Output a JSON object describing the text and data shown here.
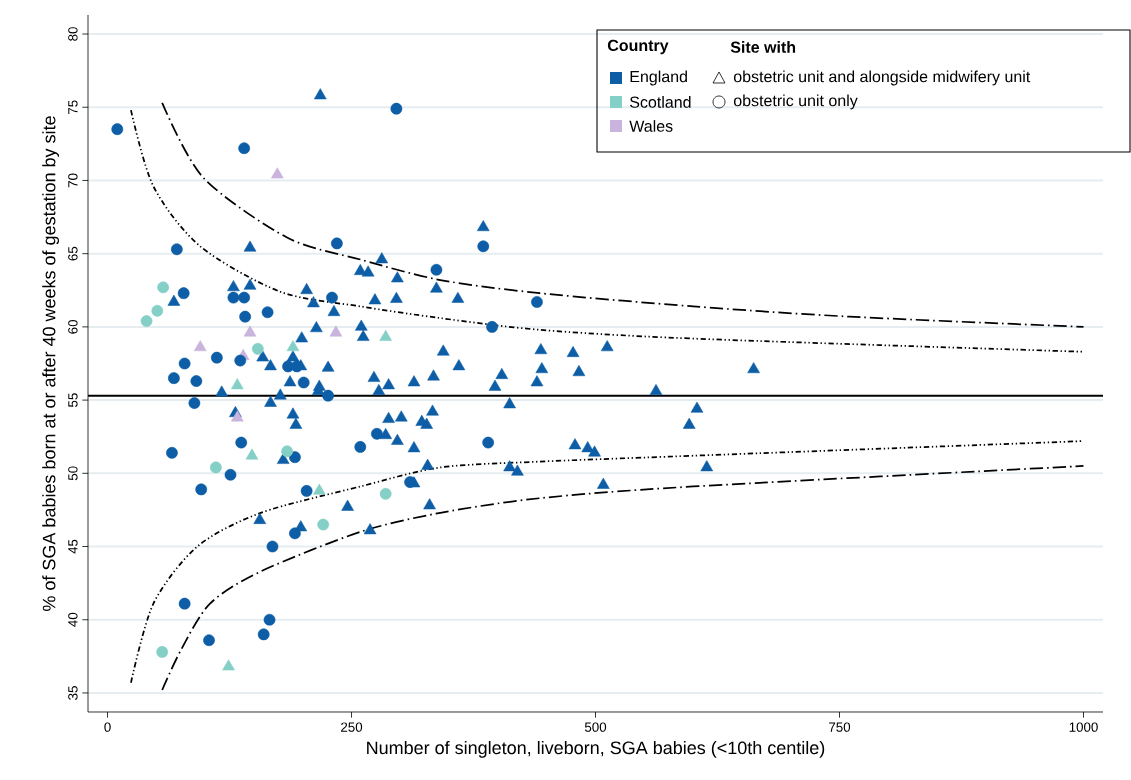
{
  "chart_data": {
    "type": "scatter",
    "xlabel": "Number of singleton, liveborn, SGA babies (<10th centile)",
    "ylabel": "% of SGA babies born at or after 40 weeks of gestation by site",
    "legend_title": "Country",
    "annotations": [
      "Site with",
      "obstetric unit and alongside midwifery unit",
      "obstetric unit only"
    ],
    "xlim": [
      -20,
      1020
    ],
    "ylim": [
      33.7,
      81.3
    ],
    "xticks": [
      0,
      250,
      500,
      750,
      1000
    ],
    "yticks": [
      35,
      40,
      45,
      50,
      55,
      60,
      65,
      70,
      75,
      80
    ],
    "grid": "y",
    "legend": "top right",
    "ref_lines": [
      {
        "axis": "y",
        "value": 55.3,
        "color": "#000000"
      }
    ],
    "series": [
      {
        "name": "England",
        "color": "#0d5ea6",
        "marker": "triangle",
        "x": [
          218,
          146,
          68,
          129,
          146,
          204,
          211,
          232,
          214,
          199,
          159,
          190,
          167,
          198,
          226,
          187,
          217,
          117,
          177,
          216,
          131,
          167,
          190,
          193,
          180,
          246,
          156,
          198,
          385,
          281,
          259,
          267,
          297,
          337,
          359,
          274,
          296,
          260,
          262,
          344,
          360,
          444,
          477,
          512,
          445,
          483,
          404,
          397,
          440,
          273,
          288,
          278,
          314,
          334,
          562,
          412,
          604,
          596,
          288,
          301,
          322,
          333,
          327,
          285,
          297,
          314,
          479,
          492,
          499,
          328,
          412,
          420,
          314,
          508,
          330,
          269,
          614,
          662
        ],
        "values": [
          75.8,
          65.4,
          61.7,
          62.7,
          62.8,
          62.5,
          61.6,
          61.0,
          59.9,
          59.2,
          57.9,
          57.9,
          57.3,
          57.3,
          57.2,
          56.2,
          55.9,
          55.5,
          55.3,
          55.6,
          54.1,
          54.8,
          54.0,
          53.3,
          50.9,
          47.7,
          46.8,
          46.3,
          66.8,
          64.6,
          63.8,
          63.7,
          63.3,
          62.6,
          61.9,
          61.8,
          61.9,
          60.0,
          59.3,
          58.3,
          57.3,
          58.4,
          58.2,
          58.6,
          57.1,
          56.9,
          56.7,
          55.9,
          56.2,
          56.5,
          56.0,
          55.6,
          56.2,
          56.6,
          55.6,
          54.7,
          54.4,
          53.3,
          53.7,
          53.8,
          53.5,
          54.2,
          53.3,
          52.6,
          52.2,
          51.7,
          51.9,
          51.7,
          51.4,
          50.5,
          50.4,
          50.1,
          49.3,
          49.2,
          47.8,
          46.1,
          50.4,
          57.1
        ]
      },
      {
        "name": "Scotland",
        "color": "#84cfc6",
        "marker": "triangle",
        "x": [
          190,
          133,
          148,
          217,
          285,
          124
        ],
        "values": [
          58.6,
          56.0,
          51.2,
          48.8,
          59.3,
          36.8
        ]
      },
      {
        "name": "Wales",
        "color": "#c8b4dc",
        "marker": "triangle",
        "x": [
          174,
          146,
          234,
          95,
          139,
          133
        ],
        "values": [
          70.4,
          59.6,
          59.6,
          58.6,
          58.0,
          53.8
        ]
      },
      {
        "color": "#0d5ea6",
        "marker": "circle",
        "x": [
          10,
          140,
          296,
          235,
          71,
          78,
          129,
          140,
          230,
          141,
          164,
          112,
          136,
          79,
          185,
          194,
          68,
          91,
          201,
          226,
          89,
          137,
          66,
          192,
          126,
          96,
          204,
          192,
          169,
          79,
          166,
          160,
          104,
          337,
          385,
          440,
          394,
          276,
          259,
          390,
          310
        ],
        "values": [
          73.5,
          72.2,
          74.9,
          65.7,
          65.3,
          62.3,
          62.0,
          62.0,
          62.0,
          60.7,
          61.0,
          57.9,
          57.7,
          57.5,
          57.3,
          57.3,
          56.5,
          56.3,
          56.2,
          55.3,
          54.8,
          52.1,
          51.4,
          51.1,
          49.9,
          48.9,
          48.8,
          45.9,
          45.0,
          41.1,
          40.0,
          39.0,
          38.6,
          63.9,
          65.5,
          61.7,
          60.0,
          52.7,
          51.8,
          52.1,
          49.4
        ]
      },
      {
        "color": "#84cfc6",
        "marker": "circle",
        "x": [
          57,
          51,
          40,
          154,
          184,
          111,
          221,
          285,
          56
        ],
        "values": [
          62.7,
          61.1,
          60.4,
          58.5,
          51.5,
          50.4,
          46.5,
          48.6,
          37.8
        ]
      },
      {
        "type": "line",
        "color": "#000000",
        "line_style": "dotted",
        "x": [
          24,
          47,
          95,
          177,
          259,
          341,
          443,
          600,
          1000
        ],
        "values": [
          74.8,
          69.6,
          65.5,
          62.4,
          61.4,
          60.6,
          59.8,
          59.2,
          58.3
        ]
      },
      {
        "type": "line",
        "color": "#000000",
        "line_style": "dashed",
        "x": [
          56,
          98,
          184,
          259,
          341,
          443,
          600,
          760,
          1000
        ],
        "values": [
          75.3,
          70.2,
          66.1,
          64.6,
          63.2,
          62.3,
          61.4,
          60.7,
          60.0
        ]
      },
      {
        "type": "line",
        "color": "#000000",
        "line_style": "dotted",
        "x": [
          24,
          47,
          92,
          157,
          259,
          341,
          443,
          600,
          1000
        ],
        "values": [
          35.7,
          41.1,
          45.0,
          47.3,
          49.1,
          50.4,
          50.8,
          51.2,
          52.2
        ]
      },
      {
        "type": "line",
        "color": "#000000",
        "line_style": "dashed",
        "x": [
          56,
          75,
          105,
          157,
          259,
          341,
          443,
          600,
          1000
        ],
        "values": [
          35.2,
          37.9,
          41.1,
          43.3,
          46.0,
          47.3,
          48.3,
          49.1,
          50.5
        ]
      }
    ]
  }
}
